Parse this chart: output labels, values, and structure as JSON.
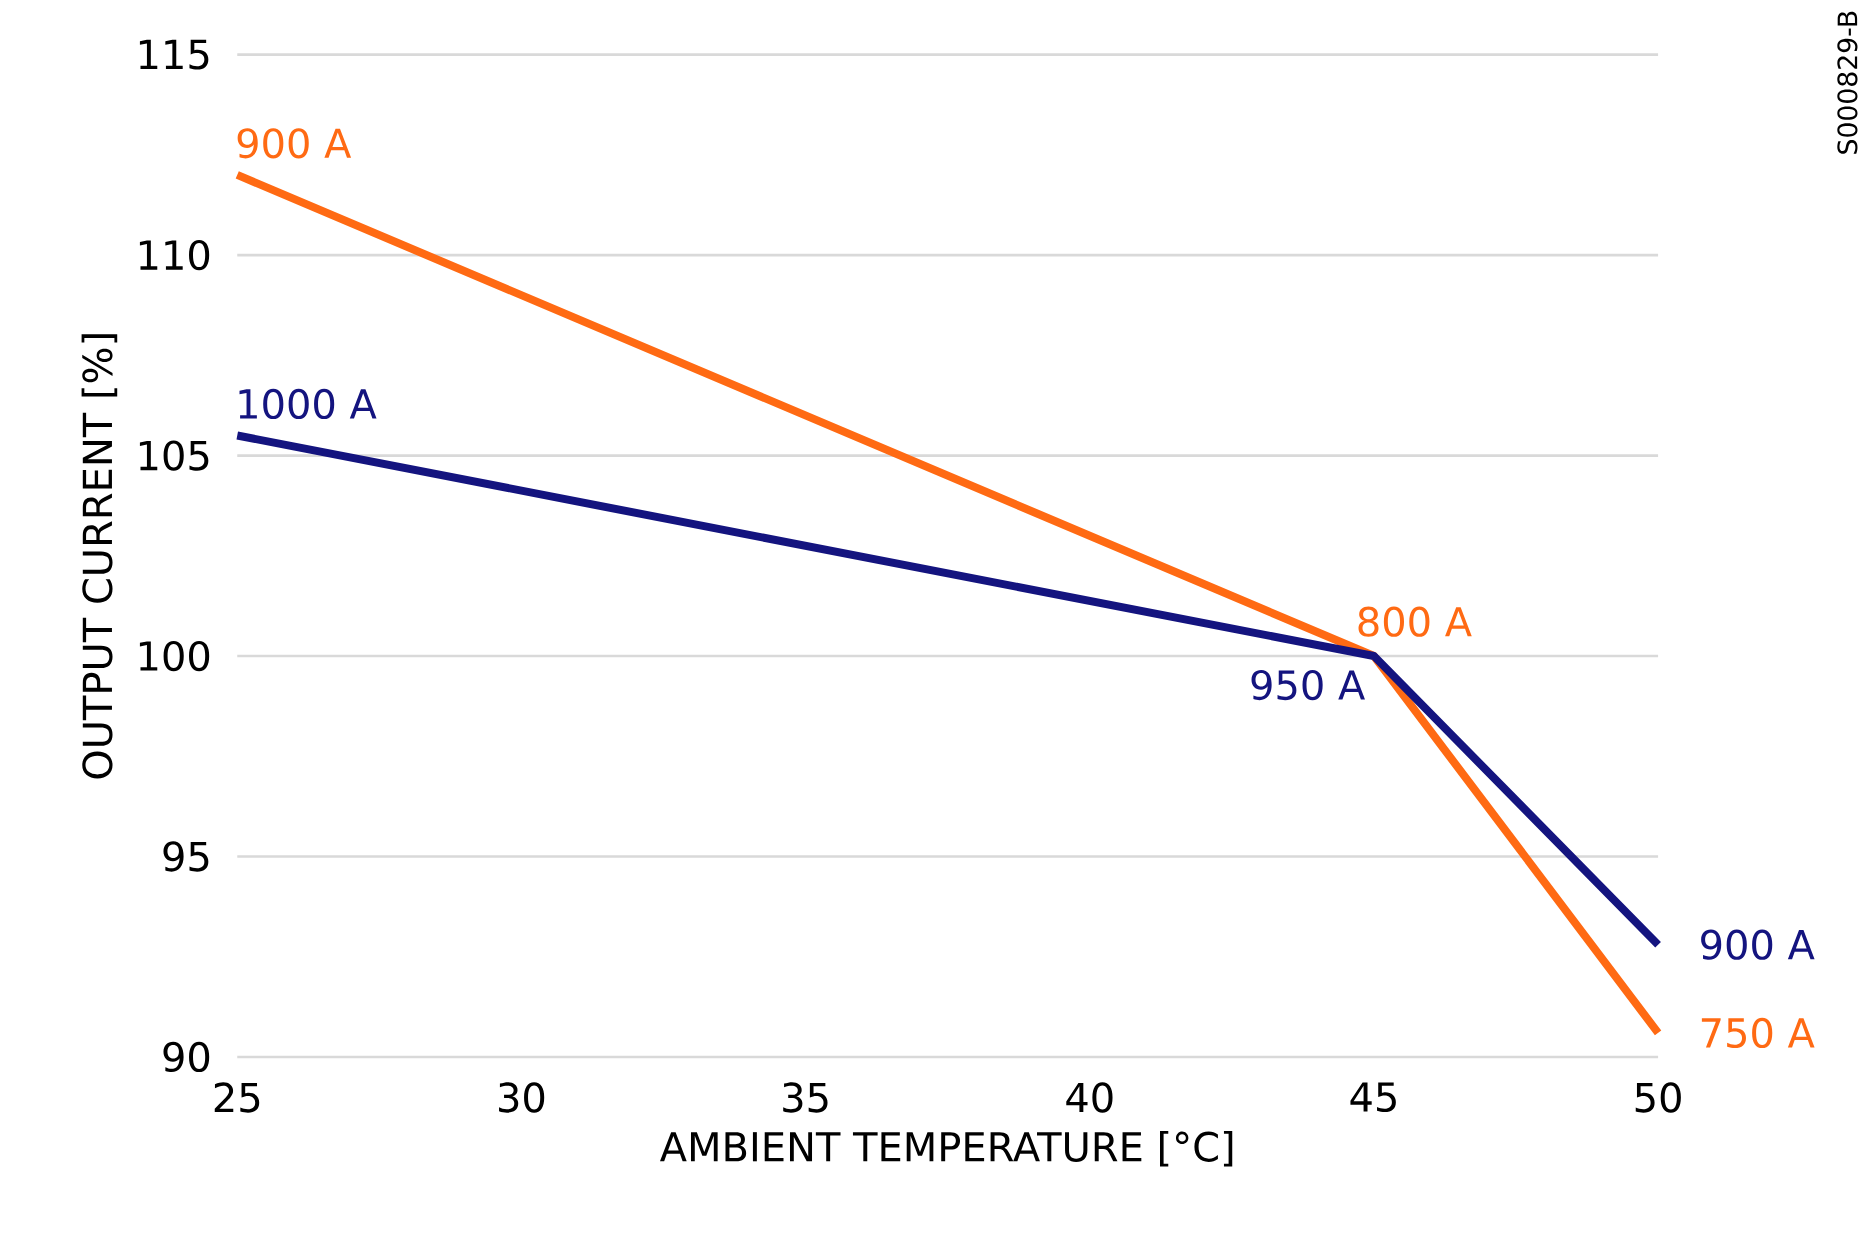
{
  "chart_data": {
    "type": "line",
    "xlabel": "AMBIENT TEMPERATURE [°C]",
    "ylabel": "OUTPUT CURRENT [%]",
    "x": [
      25,
      45,
      50
    ],
    "series": [
      {
        "color": "#ff6a13",
        "values": [
          112,
          100,
          90.6
        ]
      },
      {
        "color": "#14147f",
        "values": [
          105.5,
          100,
          92.8
        ]
      }
    ],
    "xlim": [
      25,
      50
    ],
    "xticks": [
      25,
      30,
      35,
      40,
      45,
      50
    ],
    "ylim": [
      90,
      115
    ],
    "yticks": [
      90,
      95,
      100,
      105,
      110,
      115
    ],
    "grid": "y",
    "marker": "none",
    "line_style": "solid",
    "annotations": [
      "S000829-B",
      {
        "text": "900 A",
        "x": 25,
        "y": 112
      },
      {
        "text": "800 A",
        "x": 45,
        "y": 100
      },
      {
        "text": "750 A",
        "x": 50,
        "y": 90.6
      },
      {
        "text": "1000 A",
        "x": 25,
        "y": 105.5
      },
      {
        "text": "950 A",
        "x": 45,
        "y": 100
      },
      {
        "text": "900 A",
        "x": 50,
        "y": 92.8
      }
    ]
  }
}
